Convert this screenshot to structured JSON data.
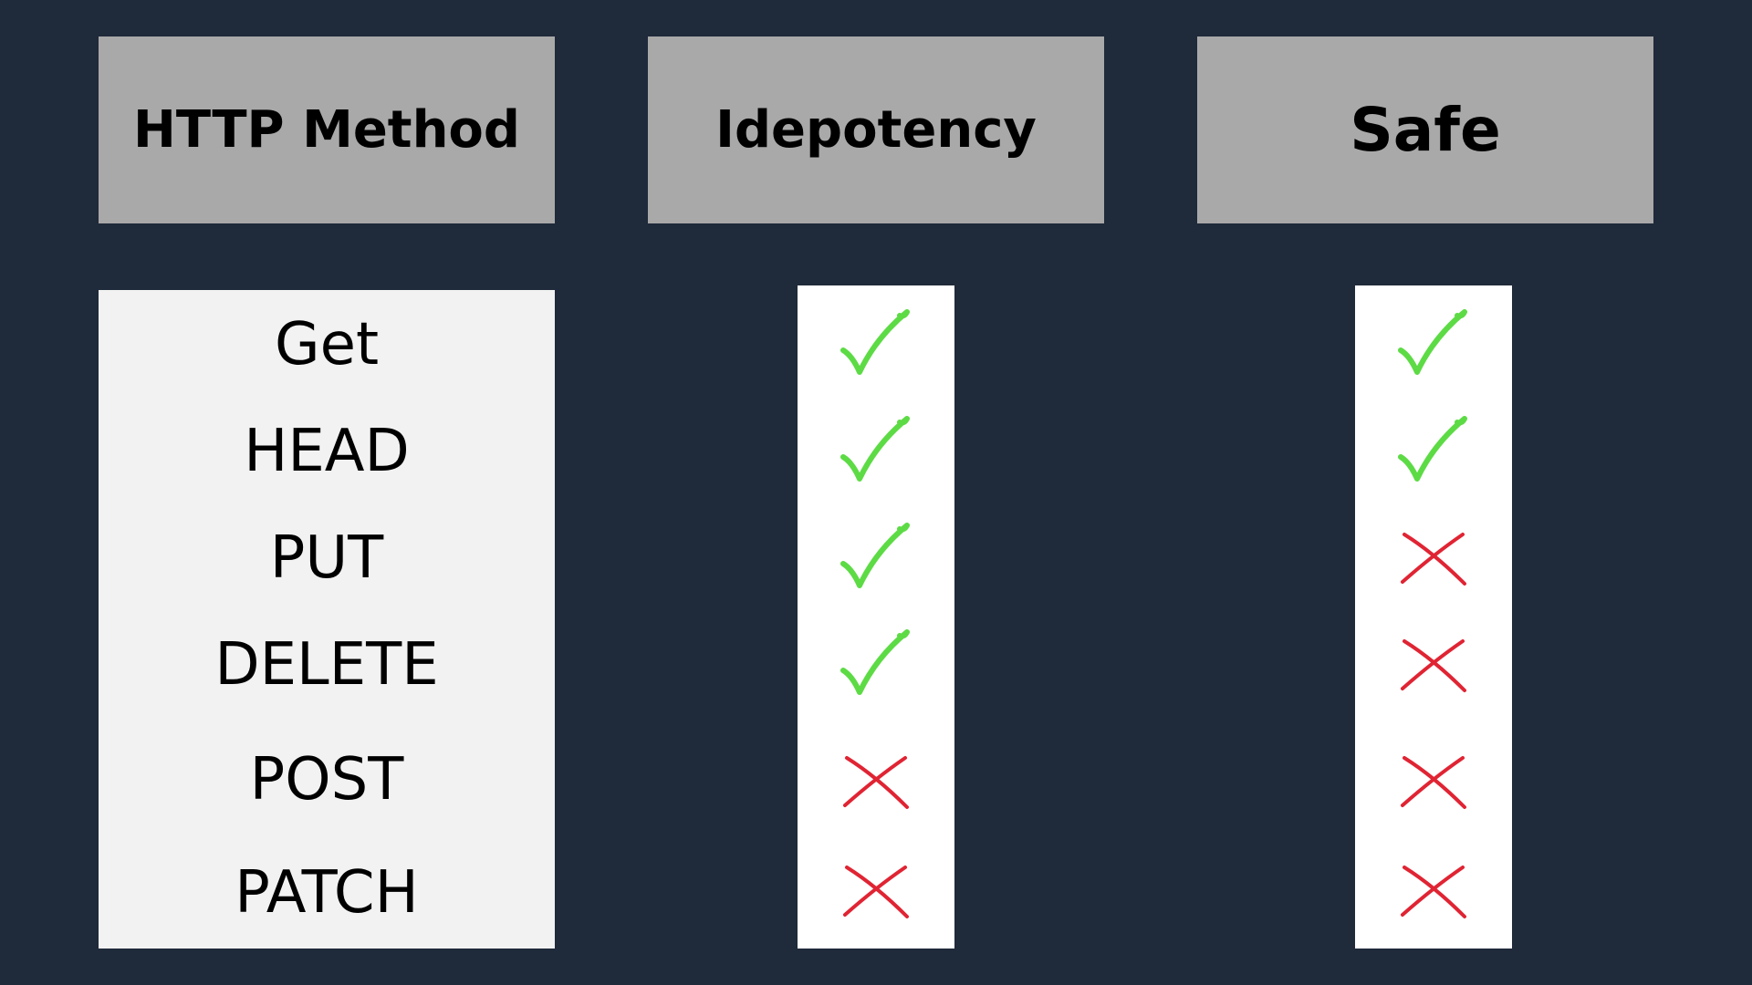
{
  "headers": {
    "method": "HTTP Method",
    "idempotency": "Idepotency",
    "safe": "Safe"
  },
  "methods": [
    "Get",
    "HEAD",
    "PUT",
    "DELETE",
    "POST",
    "PATCH"
  ],
  "idempotency": [
    "check-icon",
    "check-icon",
    "check-icon",
    "check-icon",
    "cross-icon",
    "cross-icon"
  ],
  "safe": [
    "check-icon",
    "check-icon",
    "cross-icon",
    "cross-icon",
    "cross-icon",
    "cross-icon"
  ],
  "colors": {
    "background": "#1f2a3a",
    "header_fill": "#a9a9a9",
    "method_panel": "#f2f2f2",
    "mark_panel": "#ffffff",
    "check": "#5ddb45",
    "cross": "#e02433"
  }
}
